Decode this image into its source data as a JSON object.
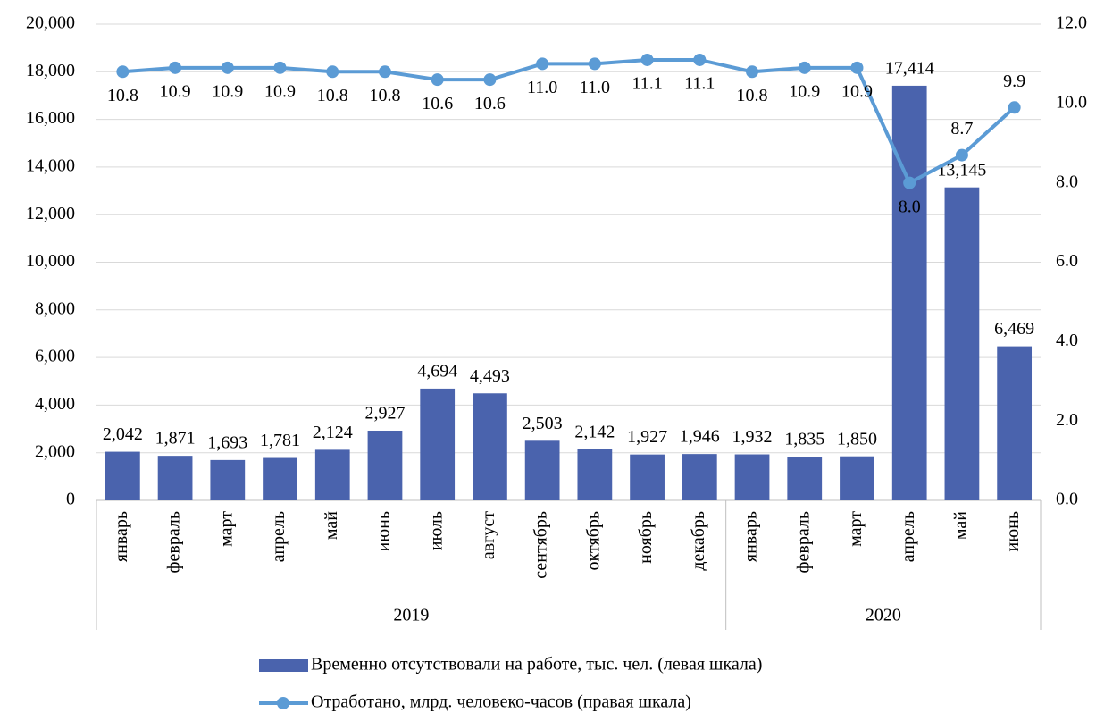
{
  "chart_data": {
    "type": "bar_line",
    "categories": [
      "январь",
      "февраль",
      "март",
      "апрель",
      "май",
      "июнь",
      "июль",
      "август",
      "сентябрь",
      "октябрь",
      "ноябрь",
      "декабрь",
      "январь",
      "февраль",
      "март",
      "апрель",
      "май",
      "июнь"
    ],
    "category_groups": [
      {
        "label": "2019",
        "span": 12
      },
      {
        "label": "2020",
        "span": 6
      }
    ],
    "series": [
      {
        "name": "Временно отсутствовали на работе, тыс. чел. (левая шкала)",
        "type": "bar",
        "color": "#4a63ad",
        "values": [
          2042,
          1871,
          1693,
          1781,
          2124,
          2927,
          4694,
          4493,
          2503,
          2142,
          1927,
          1946,
          1932,
          1835,
          1850,
          17414,
          13145,
          6469
        ],
        "value_labels": [
          "2,042",
          "1,871",
          "1,693",
          "1,781",
          "2,124",
          "2,927",
          "4,694",
          "4,493",
          "2,503",
          "2,142",
          "1,927",
          "1,946",
          "1,932",
          "1,835",
          "1,850",
          "17,414",
          "13,145",
          "6,469"
        ]
      },
      {
        "name": "Отработано, млрд. человеко-часов (правая шкала)",
        "type": "line",
        "axis": "y2",
        "color": "#5b9bd5",
        "values": [
          10.8,
          10.9,
          10.9,
          10.9,
          10.8,
          10.8,
          10.6,
          10.6,
          11.0,
          11.0,
          11.1,
          11.1,
          10.8,
          10.9,
          10.9,
          8.0,
          8.7,
          9.9
        ],
        "value_labels": [
          "10.8",
          "10.9",
          "10.9",
          "10.9",
          "10.8",
          "10.8",
          "10.6",
          "10.6",
          "11.0",
          "11.0",
          "11.1",
          "11.1",
          "10.8",
          "10.9",
          "10.9",
          "8.0",
          "8.7",
          "9.9"
        ]
      }
    ],
    "ylim": [
      0,
      20000
    ],
    "yticks": [
      0,
      {
        "value": 2000,
        "label": "2,000"
      },
      {
        "value": 4000,
        "label": "4,000"
      },
      {
        "value": 6000,
        "label": "6,000"
      },
      {
        "value": 8000,
        "label": "8,000"
      },
      {
        "value": 10000,
        "label": "10,000"
      },
      {
        "value": 12000,
        "label": "12,000"
      },
      {
        "value": 14000,
        "label": "14,000"
      },
      {
        "value": 16000,
        "label": "16,000"
      },
      {
        "value": 18000,
        "label": "18,000"
      },
      {
        "value": 20000,
        "label": "20,000"
      }
    ],
    "y2lim": [
      0,
      12
    ],
    "y2ticks": [
      {
        "value": 0,
        "label": "0.0"
      },
      {
        "value": 2,
        "label": "2.0"
      },
      {
        "value": 4,
        "label": "4.0"
      },
      {
        "value": 6,
        "label": "6.0"
      },
      {
        "value": 8,
        "label": "8.0"
      },
      {
        "value": 10,
        "label": "10.0"
      },
      {
        "value": 12,
        "label": "12.0"
      }
    ],
    "grid": true,
    "legend": "bottom"
  }
}
